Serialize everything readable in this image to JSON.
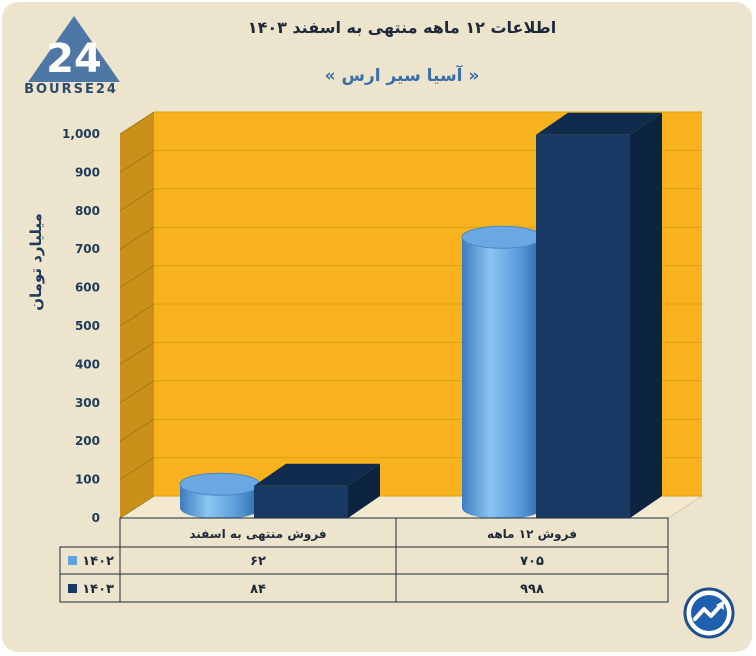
{
  "header": {
    "brand": "BOURSE24",
    "title": "اطلاعات ۱۲ ماهه منتهی به اسفند ۱۴۰۳",
    "subtitle": "« آسیا سیر ارس »"
  },
  "colors": {
    "plot_background": "#f7b21e",
    "plot_side": "#c9901a",
    "series_1402": "#5fa3e0",
    "series_1403": "#183a64",
    "card_background": "#ece4cc"
  },
  "chart_data": {
    "type": "bar",
    "title": "اطلاعات ۱۲ ماهه منتهی به اسفند ۱۴۰۳",
    "subtitle": "« آسیا سیر ارس »",
    "ylabel": "میلیارد تومان",
    "xlabel": "",
    "ylim": [
      0,
      1000
    ],
    "y_ticks": [
      0,
      100,
      200,
      300,
      400,
      500,
      600,
      700,
      800,
      900,
      1000
    ],
    "y_tick_labels": [
      "0",
      "100",
      "200",
      "300",
      "400",
      "500",
      "600",
      "700",
      "800",
      "900",
      "1,000"
    ],
    "categories": [
      "فروش منتهی به  اسفند",
      "فروش ۱۲  ماهه"
    ],
    "series": [
      {
        "name": "۱۴۰۲",
        "values": [
          62,
          705
        ],
        "value_labels": [
          "۶۲",
          "۷۰۵"
        ],
        "shape": "cylinder"
      },
      {
        "name": "۱۴۰۳",
        "values": [
          84,
          998
        ],
        "value_labels": [
          "۸۴",
          "۹۹۸"
        ],
        "shape": "box"
      }
    ],
    "grid": true,
    "legend": "data-table-bottom"
  }
}
